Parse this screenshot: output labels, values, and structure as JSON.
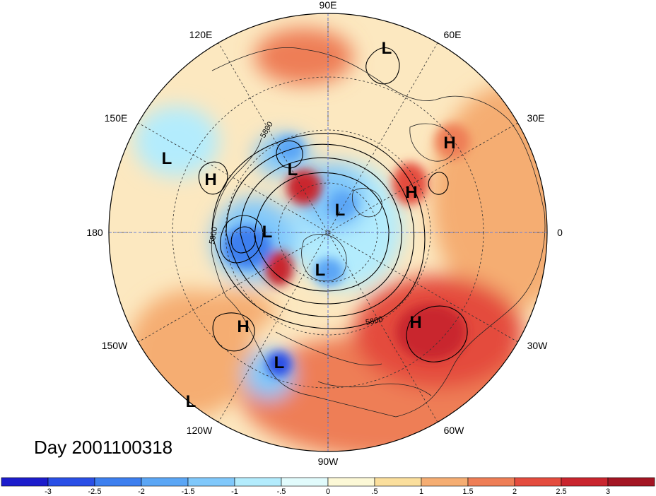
{
  "title": "Day 2001100318",
  "longitude_labels": [
    "90E",
    "60E",
    "30E",
    "0",
    "30W",
    "60W",
    "90W",
    "120W",
    "150W",
    "180",
    "150E",
    "120E"
  ],
  "pressure_centers": [
    {
      "type": "L",
      "name": "siberia-low-north"
    },
    {
      "type": "L",
      "name": "west-pacific-low"
    },
    {
      "type": "H",
      "name": "kamchatka-high"
    },
    {
      "type": "L",
      "name": "east-siberia-low"
    },
    {
      "type": "L",
      "name": "arctic-low"
    },
    {
      "type": "L",
      "name": "bering-low"
    },
    {
      "type": "L",
      "name": "canada-low"
    },
    {
      "type": "H",
      "name": "scandinavia-high"
    },
    {
      "type": "H",
      "name": "europe-high"
    },
    {
      "type": "H",
      "name": "atlantic-high"
    },
    {
      "type": "H",
      "name": "east-pacific-high"
    },
    {
      "type": "L",
      "name": "gulf-low"
    },
    {
      "type": "L",
      "name": "south-pacific-low"
    }
  ],
  "contour_labels": [
    "5800",
    "5800",
    "5800"
  ],
  "colorbar": {
    "ticks": [
      "-3",
      "-2.5",
      "-2",
      "-1.5",
      "-1",
      "-.5",
      "0",
      ".5",
      "1",
      "1.5",
      "2",
      "2.5",
      "3"
    ],
    "colors": [
      "#1c1ccc",
      "#2a4fe6",
      "#3d7fef",
      "#5ba6f5",
      "#80c8fb",
      "#b3ecfd",
      "#e1fbfc",
      "#fcf8d6",
      "#fbdf9d",
      "#f5ad72",
      "#ee7e56",
      "#e44c3e",
      "#c9252e",
      "#a31523"
    ]
  }
}
